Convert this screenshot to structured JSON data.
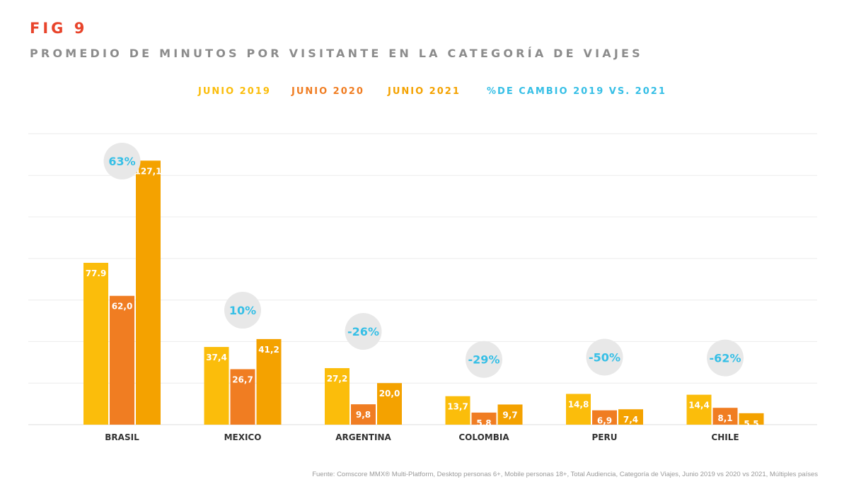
{
  "fig_label": "FIG 9",
  "title": "PROMEDIO DE MINUTOS POR VISITANTE EN LA CATEGORÍA DE VIAJES",
  "legend": [
    {
      "label": "JUNIO 2019",
      "color": "#fbbd0b"
    },
    {
      "label": "JUNIO 2020",
      "color": "#f07d22"
    },
    {
      "label": "JUNIO 2021",
      "color": "#f4a200"
    },
    {
      "label": "%DE CAMBIO 2019 VS. 2021",
      "color": "#36bfe6"
    }
  ],
  "source": "Fuente: Comscore MMX® Multi-Platform, Desktop personas 6+, Mobile personas 18+, Total Audiencia, Categoría de Viajes, Junio 2019 vs 2020 vs 2021, Múltiples países",
  "chart_data": {
    "type": "bar",
    "categories": [
      "BRASIL",
      "MEXICO",
      "ARGENTINA",
      "COLOMBIA",
      "PERU",
      "CHILE"
    ],
    "series": [
      {
        "name": "JUNIO 2019",
        "values": [
          77.9,
          37.4,
          27.2,
          13.7,
          14.8,
          14.4
        ],
        "labels": [
          "77.9",
          "37,4",
          "27,2",
          "13,7",
          "14,8",
          "14,4"
        ],
        "color": "#fbbd0b"
      },
      {
        "name": "JUNIO 2020",
        "values": [
          62.0,
          26.7,
          9.8,
          5.8,
          6.9,
          8.1
        ],
        "labels": [
          "62,0",
          "26,7",
          "9,8",
          "5,8",
          "6,9",
          "8,1"
        ],
        "color": "#f07d22"
      },
      {
        "name": "JUNIO 2021",
        "values": [
          127.1,
          41.2,
          20.0,
          9.7,
          7.4,
          5.5
        ],
        "labels": [
          "127,1",
          "41,2",
          "20,0",
          "9,7",
          "7,4",
          "5,5"
        ],
        "color": "#f4a200"
      }
    ],
    "change": {
      "name": "%DE CAMBIO 2019 VS. 2021",
      "labels": [
        "63%",
        "10%",
        "-26%",
        "-29%",
        "-50%",
        "-62%"
      ],
      "values": [
        63,
        10,
        -26,
        -29,
        -50,
        -62
      ],
      "color": "#36bfe6"
    },
    "ylim": [
      0,
      140
    ],
    "grid": true,
    "legend_position": "top-center"
  }
}
